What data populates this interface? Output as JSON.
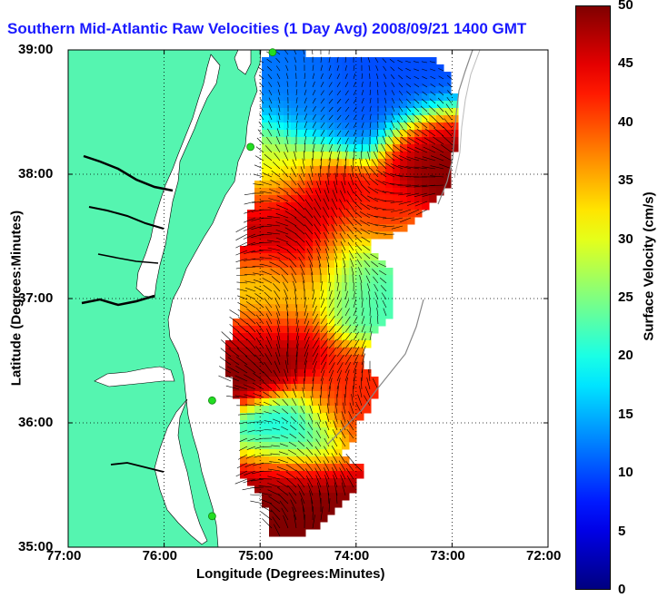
{
  "title": "Southern Mid-Atlantic Raw Velocities (1 Day Avg) 2008/09/21 1400 GMT",
  "xlabel": "Longitude (Degrees:Minutes)",
  "ylabel": "Latitude (Degrees:Minutes)",
  "x_ticks": [
    "77:00",
    "76:00",
    "75:00",
    "74:00",
    "73:00",
    "72:00"
  ],
  "y_ticks": [
    "39:00",
    "38:00",
    "37:00",
    "36:00",
    "35:00"
  ],
  "colorbar": {
    "label": "Surface Velocity (cm/s)",
    "ticks": [
      "0",
      "5",
      "10",
      "15",
      "20",
      "25",
      "30",
      "35",
      "40",
      "45",
      "50"
    ]
  },
  "colors": {
    "land": "#55f5b0",
    "title": "#1a1aff",
    "station": "#22dd22",
    "vectors": "#000000"
  },
  "chart_data": {
    "type": "heatmap",
    "title": "Southern Mid-Atlantic Raw Velocities (1 Day Avg) 2008/09/21 1400 GMT",
    "xlabel": "Longitude (Degrees:Minutes)",
    "ylabel": "Latitude (Degrees:Minutes)",
    "xlim": [
      -77,
      -72
    ],
    "ylim": [
      35,
      39
    ],
    "grid": true,
    "colorbar_range": [
      0,
      50
    ],
    "colormap": "jet",
    "overlay": "current velocity vectors",
    "stations": [
      {
        "lon": -74.87,
        "lat": 38.98
      },
      {
        "lon": -75.1,
        "lat": 38.22
      },
      {
        "lon": -75.5,
        "lat": 36.18
      },
      {
        "lon": -75.5,
        "lat": 35.25
      }
    ]
  }
}
